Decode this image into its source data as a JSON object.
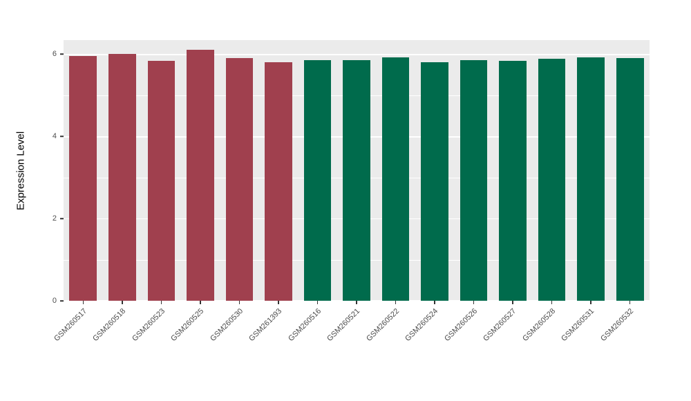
{
  "figure": {
    "background_color": "#FFFFFF",
    "panel_background_color": "#EBEBEB",
    "grid_color": "#FFFFFF",
    "tick_color": "#333333",
    "axis_text_color": "#4D4D4D"
  },
  "chart_data": {
    "type": "bar",
    "title": "",
    "xlabel": "",
    "ylabel": "Expression Level",
    "ylim": [
      0,
      6.34
    ],
    "yticks_major": [
      0,
      2,
      4,
      6
    ],
    "yticks_minor": [
      1,
      3,
      5
    ],
    "grid": "on",
    "categories": [
      "GSM260517",
      "GSM260518",
      "GSM260523",
      "GSM260525",
      "GSM260530",
      "GSM261393",
      "GSM260516",
      "GSM260521",
      "GSM260522",
      "GSM260524",
      "GSM260526",
      "GSM260527",
      "GSM260528",
      "GSM260531",
      "GSM260532"
    ],
    "values": [
      5.95,
      6.0,
      5.83,
      6.1,
      5.9,
      5.8,
      5.86,
      5.85,
      5.92,
      5.8,
      5.85,
      5.83,
      5.88,
      5.92,
      5.9
    ],
    "bar_colors": [
      "#A0404E",
      "#A0404E",
      "#A0404E",
      "#A0404E",
      "#A0404E",
      "#A0404E",
      "#006B4C",
      "#006B4C",
      "#006B4C",
      "#006B4C",
      "#006B4C",
      "#006B4C",
      "#006B4C",
      "#006B4C",
      "#006B4C"
    ]
  }
}
